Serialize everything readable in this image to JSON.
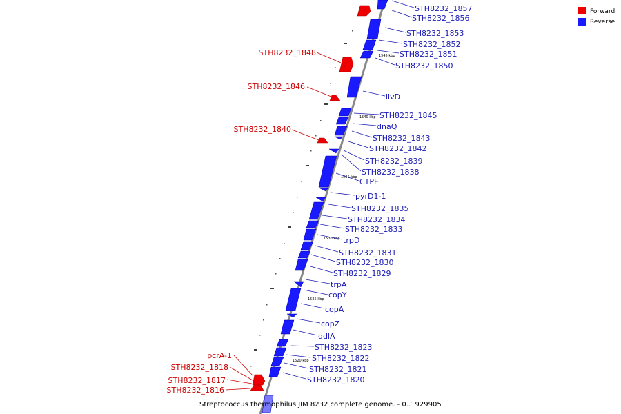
{
  "caption": "Streptococcus thermophilus JIM 8232 complete genome. - 0..1929905",
  "legend": {
    "forward": {
      "label": "Forward",
      "color": "#ee0000"
    },
    "reverse": {
      "label": "Reverse",
      "color": "#1a1aff"
    }
  },
  "colors": {
    "forward_text": "#cc0000",
    "reverse_text": "#1a1ab4",
    "axis": "#888888"
  },
  "kbp_labels": [
    "1545 kbp",
    "1540 kbp",
    "1535 kbp",
    "1530 kbp",
    "1525 kbp",
    "1520 kbp"
  ],
  "forward_genes": [
    "STH8232_1848",
    "STH8232_1846",
    "STH8232_1840",
    "pcrA-1",
    "STH8232_1818",
    "STH8232_1817",
    "STH8232_1816"
  ],
  "reverse_genes": [
    "STH8232_1857",
    "STH8232_1856",
    "STH8232_1853",
    "STH8232_1852",
    "STH8232_1851",
    "STH8232_1850",
    "ilvD",
    "STH8232_1845",
    "dnaQ",
    "STH8232_1843",
    "STH8232_1842",
    "STH8232_1839",
    "STH8232_1838",
    "CTPE",
    "pyrD1-1",
    "STH8232_1835",
    "STH8232_1834",
    "STH8232_1833",
    "trpD",
    "STH8232_1831",
    "STH8232_1830",
    "STH8232_1829",
    "trpA",
    "copY",
    "copA",
    "copZ",
    "ddlA",
    "STH8232_1823",
    "STH8232_1822",
    "STH8232_1821",
    "STH8232_1820"
  ]
}
